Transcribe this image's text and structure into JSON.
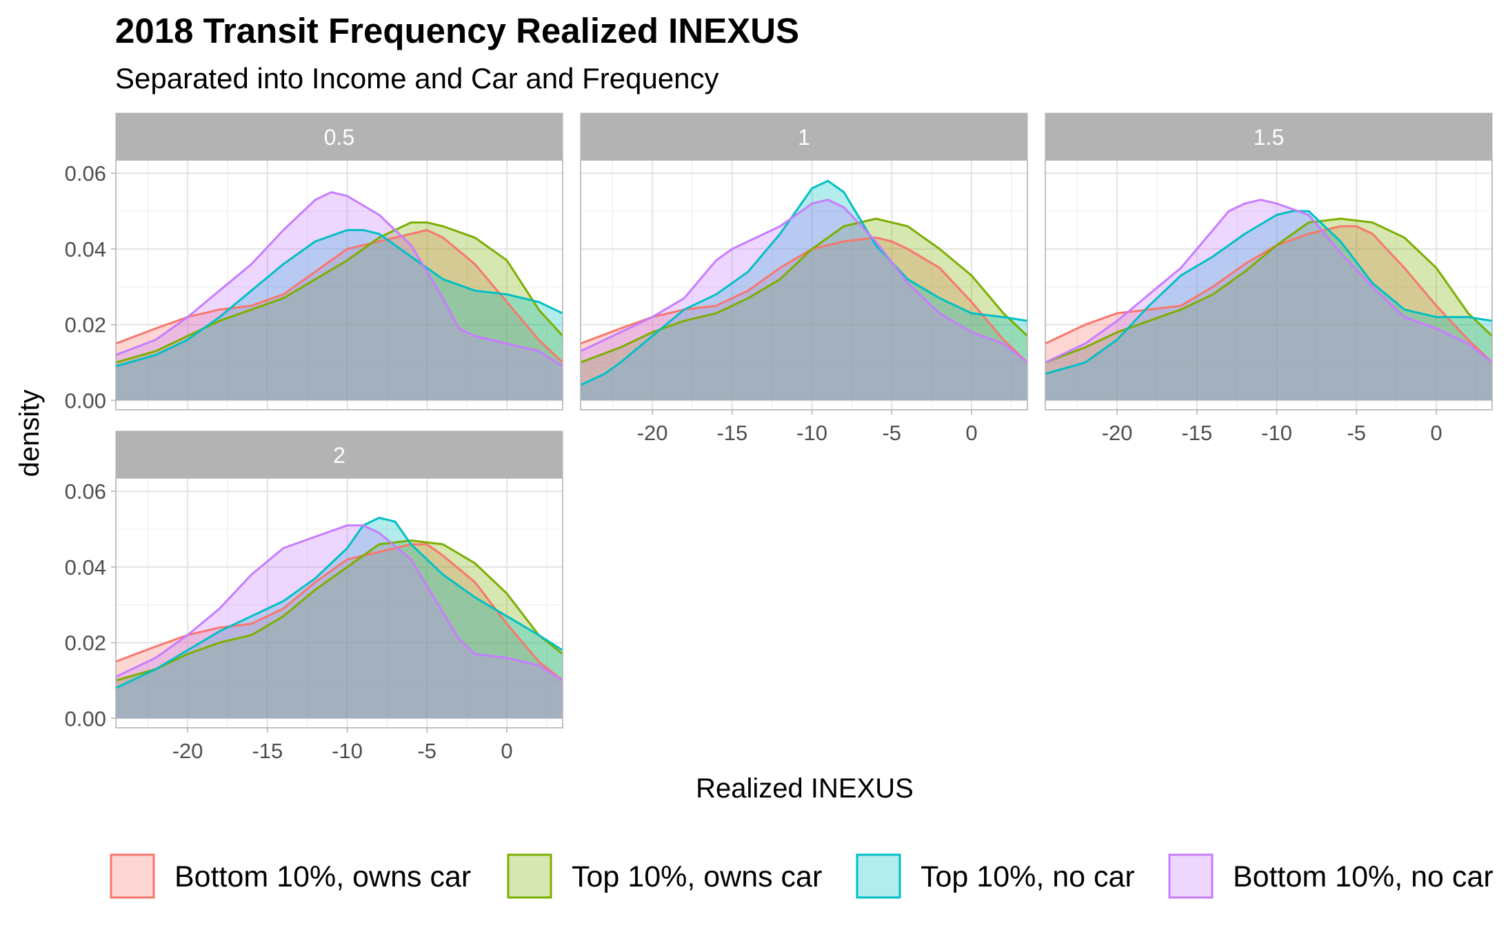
{
  "chart_data": {
    "type": "area",
    "title": "2018 Transit Frequency Realized INEXUS",
    "subtitle": "Separated into Income and Car and Frequency",
    "xlabel": "Realized INEXUS",
    "ylabel": "density",
    "xlim": [
      -24.5,
      3.5
    ],
    "ylim": [
      -0.0025,
      0.0635
    ],
    "x_ticks": [
      -20,
      -15,
      -10,
      -5,
      0
    ],
    "x_tick_labels": [
      "-20",
      "-15",
      "-10",
      "-5",
      "0"
    ],
    "y_ticks": [
      0,
      0.02,
      0.04,
      0.06
    ],
    "y_tick_labels": [
      "0.00",
      "0.02",
      "0.04",
      "0.06"
    ],
    "grid": true,
    "legend_position": "bottom",
    "colors": {
      "Bottom 10%, owns car": "#F8766D",
      "Top 10%, owns car": "#7CAE00",
      "Top 10%, no car": "#00BFC4",
      "Bottom 10%, no car": "#C77CFF"
    },
    "series_order": [
      "Bottom 10%, owns car",
      "Top 10%, owns car",
      "Top 10%, no car",
      "Bottom 10%, no car"
    ],
    "panels": [
      {
        "label": "0.5",
        "series": [
          {
            "name": "Bottom 10%, owns car",
            "x": [
              -24.5,
              -22,
              -20,
              -18,
              -16,
              -14,
              -12,
              -10,
              -8,
              -6,
              -5,
              -4,
              -2,
              0,
              2,
              3.5
            ],
            "y": [
              0.015,
              0.019,
              0.022,
              0.024,
              0.025,
              0.028,
              0.034,
              0.04,
              0.042,
              0.044,
              0.045,
              0.043,
              0.036,
              0.026,
              0.016,
              0.01
            ]
          },
          {
            "name": "Top 10%, owns car",
            "x": [
              -24.5,
              -22,
              -20,
              -18,
              -16,
              -14,
              -12,
              -10,
              -8,
              -6,
              -5,
              -4,
              -2,
              0,
              2,
              3.5
            ],
            "y": [
              0.01,
              0.013,
              0.017,
              0.021,
              0.024,
              0.027,
              0.032,
              0.037,
              0.043,
              0.047,
              0.047,
              0.046,
              0.043,
              0.037,
              0.024,
              0.017
            ]
          },
          {
            "name": "Top 10%, no car",
            "x": [
              -24.5,
              -22,
              -20,
              -18,
              -16,
              -14,
              -12,
              -10,
              -9,
              -8,
              -6,
              -4,
              -2,
              0,
              2,
              3.5
            ],
            "y": [
              0.009,
              0.012,
              0.016,
              0.022,
              0.029,
              0.036,
              0.042,
              0.045,
              0.045,
              0.044,
              0.038,
              0.032,
              0.029,
              0.028,
              0.026,
              0.023
            ]
          },
          {
            "name": "Bottom 10%, no car",
            "x": [
              -24.5,
              -22,
              -20,
              -18,
              -16,
              -14,
              -12,
              -11,
              -10,
              -8,
              -6,
              -4,
              -3,
              -2,
              0,
              2,
              3.5
            ],
            "y": [
              0.012,
              0.016,
              0.022,
              0.029,
              0.036,
              0.045,
              0.053,
              0.055,
              0.054,
              0.049,
              0.041,
              0.027,
              0.019,
              0.017,
              0.015,
              0.013,
              0.009
            ]
          }
        ]
      },
      {
        "label": "1",
        "series": [
          {
            "name": "Bottom 10%, owns car",
            "x": [
              -24.5,
              -22,
              -20,
              -18,
              -16,
              -14,
              -12,
              -10,
              -8,
              -6,
              -5,
              -4,
              -2,
              0,
              2,
              3.5
            ],
            "y": [
              0.015,
              0.019,
              0.022,
              0.024,
              0.025,
              0.029,
              0.035,
              0.04,
              0.042,
              0.043,
              0.042,
              0.04,
              0.035,
              0.026,
              0.016,
              0.01
            ]
          },
          {
            "name": "Top 10%, owns car",
            "x": [
              -24.5,
              -22,
              -20,
              -18,
              -16,
              -14,
              -12,
              -10,
              -8,
              -6,
              -4,
              -2,
              0,
              2,
              3.5
            ],
            "y": [
              0.01,
              0.014,
              0.018,
              0.021,
              0.023,
              0.027,
              0.032,
              0.04,
              0.046,
              0.048,
              0.046,
              0.04,
              0.033,
              0.023,
              0.017
            ]
          },
          {
            "name": "Top 10%, no car",
            "x": [
              -24.5,
              -23,
              -22,
              -20,
              -18,
              -16,
              -14,
              -12,
              -10,
              -9,
              -8,
              -7,
              -6,
              -4,
              -2,
              0,
              2,
              3.5
            ],
            "y": [
              0.004,
              0.007,
              0.01,
              0.017,
              0.024,
              0.028,
              0.034,
              0.044,
              0.056,
              0.058,
              0.055,
              0.048,
              0.041,
              0.032,
              0.027,
              0.023,
              0.022,
              0.021
            ]
          },
          {
            "name": "Bottom 10%, no car",
            "x": [
              -24.5,
              -22,
              -20,
              -18,
              -16,
              -15,
              -14,
              -12,
              -10,
              -9,
              -8,
              -6,
              -4,
              -2,
              0,
              2,
              3.5
            ],
            "y": [
              0.013,
              0.018,
              0.022,
              0.027,
              0.037,
              0.04,
              0.042,
              0.046,
              0.052,
              0.053,
              0.051,
              0.042,
              0.031,
              0.023,
              0.018,
              0.015,
              0.01
            ]
          }
        ]
      },
      {
        "label": "1.5",
        "series": [
          {
            "name": "Bottom 10%, owns car",
            "x": [
              -24.5,
              -22,
              -20,
              -18,
              -16,
              -14,
              -12,
              -10,
              -8,
              -6,
              -5,
              -4,
              -2,
              0,
              2,
              3.5
            ],
            "y": [
              0.015,
              0.02,
              0.023,
              0.024,
              0.025,
              0.03,
              0.036,
              0.041,
              0.044,
              0.046,
              0.046,
              0.044,
              0.035,
              0.025,
              0.016,
              0.01
            ]
          },
          {
            "name": "Top 10%, owns car",
            "x": [
              -24.5,
              -22,
              -20,
              -18,
              -16,
              -14,
              -12,
              -10,
              -8,
              -6,
              -4,
              -2,
              0,
              2,
              3.5
            ],
            "y": [
              0.01,
              0.014,
              0.018,
              0.021,
              0.024,
              0.028,
              0.034,
              0.041,
              0.047,
              0.048,
              0.047,
              0.043,
              0.035,
              0.023,
              0.017
            ]
          },
          {
            "name": "Top 10%, no car",
            "x": [
              -24.5,
              -22,
              -20,
              -18,
              -16,
              -14,
              -12,
              -10,
              -9,
              -8,
              -6,
              -4,
              -2,
              0,
              2,
              3.5
            ],
            "y": [
              0.007,
              0.01,
              0.016,
              0.025,
              0.033,
              0.038,
              0.044,
              0.049,
              0.05,
              0.05,
              0.042,
              0.031,
              0.024,
              0.022,
              0.022,
              0.021
            ]
          },
          {
            "name": "Bottom 10%, no car",
            "x": [
              -24.5,
              -22,
              -20,
              -18,
              -16,
              -14,
              -13,
              -12,
              -11,
              -10,
              -8,
              -6,
              -4,
              -2,
              0,
              2,
              3.5
            ],
            "y": [
              0.01,
              0.015,
              0.021,
              0.028,
              0.035,
              0.045,
              0.05,
              0.052,
              0.053,
              0.052,
              0.049,
              0.039,
              0.03,
              0.022,
              0.019,
              0.015,
              0.01
            ]
          }
        ]
      },
      {
        "label": "2",
        "series": [
          {
            "name": "Bottom 10%, owns car",
            "x": [
              -24.5,
              -22,
              -20,
              -18,
              -16,
              -14,
              -12,
              -10,
              -8,
              -6,
              -5,
              -4,
              -2,
              0,
              2,
              3.5
            ],
            "y": [
              0.015,
              0.019,
              0.022,
              0.024,
              0.025,
              0.029,
              0.036,
              0.042,
              0.044,
              0.046,
              0.046,
              0.043,
              0.036,
              0.025,
              0.015,
              0.01
            ]
          },
          {
            "name": "Top 10%, owns car",
            "x": [
              -24.5,
              -22,
              -20,
              -18,
              -16,
              -14,
              -12,
              -10,
              -8,
              -6,
              -4,
              -2,
              0,
              2,
              3.5
            ],
            "y": [
              0.01,
              0.013,
              0.017,
              0.02,
              0.022,
              0.027,
              0.034,
              0.04,
              0.046,
              0.047,
              0.046,
              0.041,
              0.033,
              0.022,
              0.017
            ]
          },
          {
            "name": "Top 10%, no car",
            "x": [
              -24.5,
              -22,
              -20,
              -18,
              -16,
              -14,
              -12,
              -10,
              -9,
              -8,
              -7,
              -6,
              -4,
              -2,
              0,
              2,
              3.5
            ],
            "y": [
              0.008,
              0.013,
              0.018,
              0.023,
              0.027,
              0.031,
              0.037,
              0.045,
              0.051,
              0.053,
              0.052,
              0.046,
              0.038,
              0.032,
              0.027,
              0.022,
              0.018
            ]
          },
          {
            "name": "Bottom 10%, no car",
            "x": [
              -24.5,
              -22,
              -20,
              -18,
              -16,
              -14,
              -12,
              -10,
              -9,
              -8,
              -6,
              -4,
              -3,
              -2,
              0,
              2,
              3.5
            ],
            "y": [
              0.011,
              0.016,
              0.022,
              0.029,
              0.038,
              0.045,
              0.048,
              0.051,
              0.051,
              0.049,
              0.042,
              0.028,
              0.021,
              0.017,
              0.016,
              0.014,
              0.01
            ]
          }
        ]
      }
    ]
  },
  "legend": {
    "items": [
      {
        "label": "Bottom 10%, owns car",
        "color": "#F8766D"
      },
      {
        "label": "Top 10%, owns car",
        "color": "#7CAE00"
      },
      {
        "label": "Top 10%, no car",
        "color": "#00BFC4"
      },
      {
        "label": "Bottom 10%, no car",
        "color": "#C77CFF"
      }
    ]
  }
}
